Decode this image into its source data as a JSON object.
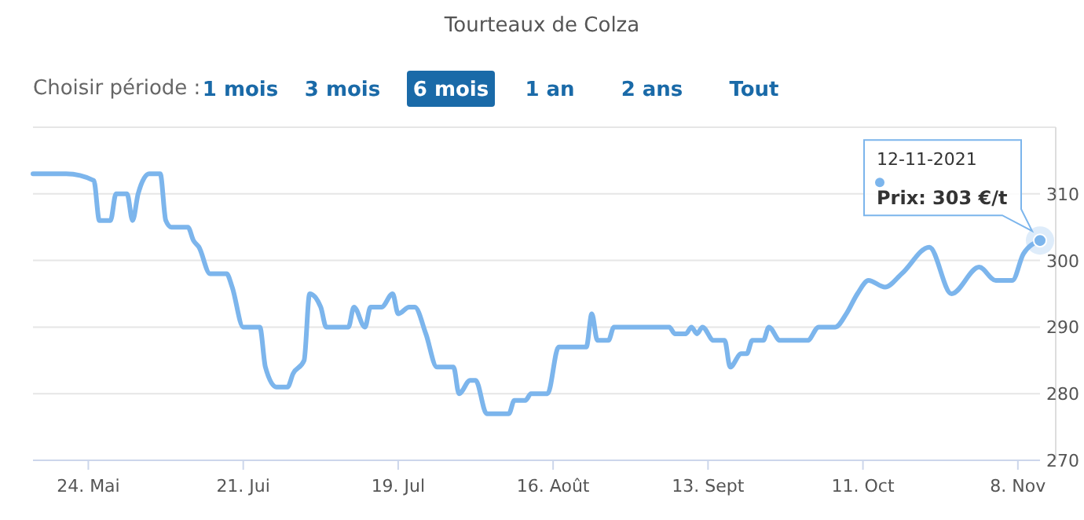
{
  "chart_data": {
    "type": "line",
    "title": "Tourteaux de Colza",
    "annotations": [
      "Choisir période :",
      "1 mois",
      "3 mois",
      "6 mois",
      "1 an",
      "2 ans",
      "Tout",
      "12-11-2021",
      {
        "text": "Prix: 303 €/t",
        "x": "2021-11-12",
        "y": 303
      }
    ],
    "x": [
      "2021-05-14",
      "2021-05-20",
      "2021-05-25",
      "2021-05-26",
      "2021-05-28",
      "2021-05-29",
      "2021-05-31",
      "2021-06-01",
      "2021-06-02",
      "2021-06-04",
      "2021-06-06",
      "2021-06-07",
      "2021-06-08",
      "2021-06-11",
      "2021-06-12",
      "2021-06-13",
      "2021-06-15",
      "2021-06-18",
      "2021-06-19",
      "2021-06-21",
      "2021-06-24",
      "2021-06-25",
      "2021-06-27",
      "2021-06-29",
      "2021-06-30",
      "2021-07-02",
      "2021-07-03",
      "2021-07-05",
      "2021-07-06",
      "2021-07-10",
      "2021-07-11",
      "2021-07-13",
      "2021-07-14",
      "2021-07-16",
      "2021-07-18",
      "2021-07-19",
      "2021-07-21",
      "2021-07-22",
      "2021-07-24",
      "2021-07-26",
      "2021-07-29",
      "2021-07-30",
      "2021-08-01",
      "2021-08-02",
      "2021-08-04",
      "2021-08-08",
      "2021-08-09",
      "2021-08-11",
      "2021-08-12",
      "2021-08-15",
      "2021-08-17",
      "2021-08-22",
      "2021-08-23",
      "2021-08-24",
      "2021-08-26",
      "2021-08-27",
      "2021-09-06",
      "2021-09-07",
      "2021-09-09",
      "2021-09-10",
      "2021-09-11",
      "2021-09-12",
      "2021-09-14",
      "2021-09-16",
      "2021-09-17",
      "2021-09-19",
      "2021-09-20",
      "2021-09-21",
      "2021-09-23",
      "2021-09-24",
      "2021-09-26",
      "2021-10-01",
      "2021-10-03",
      "2021-10-06",
      "2021-10-08",
      "2021-10-10",
      "2021-10-12",
      "2021-10-15",
      "2021-10-18",
      "2021-10-23",
      "2021-10-27",
      "2021-11-01",
      "2021-11-04",
      "2021-11-07",
      "2021-11-09",
      "2021-11-12"
    ],
    "series": [
      {
        "color": "#7cb5ec",
        "values": [
          313,
          313,
          312,
          306,
          306,
          310,
          310,
          306,
          310,
          313,
          313,
          306,
          305,
          305,
          303,
          302,
          298,
          298,
          296,
          290,
          290,
          284,
          281,
          281,
          283,
          285,
          295,
          293,
          290,
          290,
          293,
          290,
          293,
          293,
          295,
          292,
          293,
          293,
          289,
          284,
          284,
          280,
          282,
          282,
          277,
          277,
          279,
          279,
          280,
          280,
          287,
          287,
          292,
          288,
          288,
          290,
          290,
          289,
          289,
          290,
          289,
          290,
          288,
          288,
          284,
          286,
          286,
          288,
          288,
          290,
          288,
          288,
          290,
          290,
          292,
          295,
          297,
          296,
          298,
          302,
          295,
          299,
          297,
          297,
          301,
          303
        ]
      }
    ],
    "xlim": [
      "2021-05-14",
      "2021-11-12"
    ],
    "xticks": [
      {
        "value": "2021-05-24",
        "label": "24. Mai"
      },
      {
        "value": "2021-06-21",
        "label": "21. Jui"
      },
      {
        "value": "2021-07-19",
        "label": "19. Jul"
      },
      {
        "value": "2021-08-16",
        "label": "16. Août"
      },
      {
        "value": "2021-09-13",
        "label": "13. Sept"
      },
      {
        "value": "2021-10-11",
        "label": "11. Oct"
      },
      {
        "value": "2021-11-08",
        "label": "8. Nov"
      }
    ],
    "ylim": [
      270,
      320
    ],
    "yticks": [
      270,
      280,
      290,
      300,
      310
    ],
    "grid": "y",
    "legend": false,
    "marker": "none",
    "line_style": "solid"
  }
}
